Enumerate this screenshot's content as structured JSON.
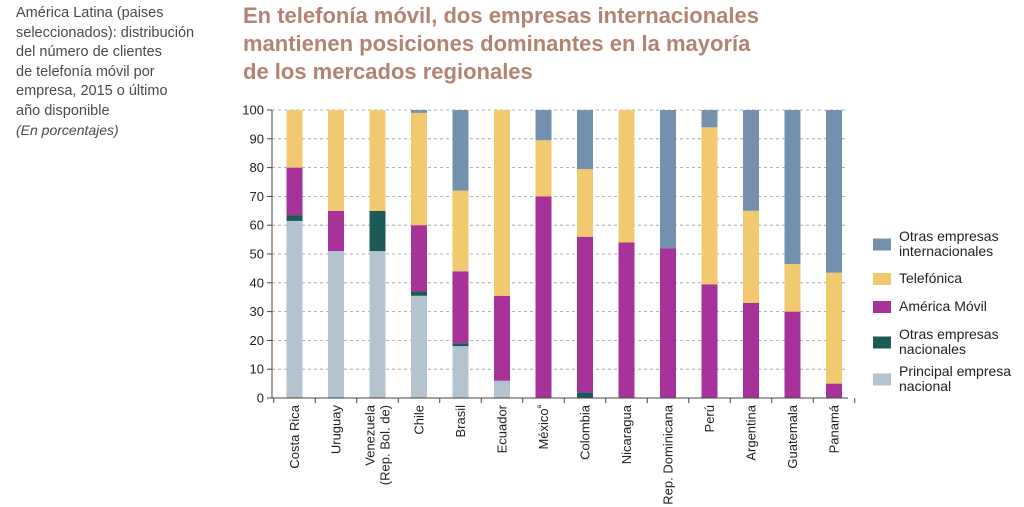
{
  "caption": {
    "line1": "América Latina (paises",
    "line2": "seleccionados): distribución",
    "line3": "del número de clientes",
    "line4": "de telefonía móvil por",
    "line5": "empresa, 2015 o último",
    "line6": "año disponible",
    "units": "(En porcentajes)"
  },
  "title": {
    "line1": "En telefonía móvil, dos empresas internacionales",
    "line2": "mantienen posiciones dominantes en la mayoría",
    "line3": "de los mercados regionales"
  },
  "colors": {
    "principal": "#b3c3d0",
    "otras_nac": "#1b5a57",
    "america_movil": "#a7339a",
    "telefonica": "#f1c96f",
    "otras_int": "#7390ad"
  },
  "chart_data": {
    "type": "bar",
    "stacked": true,
    "ylim": [
      0,
      100
    ],
    "yticks": [
      0,
      10,
      20,
      30,
      40,
      50,
      60,
      70,
      80,
      90,
      100
    ],
    "grid": "horizontal-dashed",
    "categories": [
      [
        "Costa Rica"
      ],
      [
        "Uruguay"
      ],
      [
        "Venezuela",
        "(Rep. Bol. de)"
      ],
      [
        "Chile"
      ],
      [
        "Brasil"
      ],
      [
        "Ecuador"
      ],
      [
        "México",
        "ª"
      ],
      [
        "Colombia"
      ],
      [
        "Nicaragua"
      ],
      [
        "Rep. Dominicana"
      ],
      [
        "Perú"
      ],
      [
        "Argentina"
      ],
      [
        "Guatemala"
      ],
      [
        "Panamá"
      ]
    ],
    "series": [
      {
        "key": "principal",
        "name": "Principal empresa nacional",
        "values": [
          61.5,
          51,
          51,
          35.5,
          18,
          6,
          0,
          0,
          0,
          0,
          0,
          0,
          0,
          0
        ]
      },
      {
        "key": "otras_nac",
        "name": "Otras empresas nacionales",
        "values": [
          2,
          0,
          14,
          1.5,
          1,
          0,
          0,
          2,
          0,
          0,
          0,
          0,
          0,
          0
        ]
      },
      {
        "key": "america_movil",
        "name": "América Móvil",
        "values": [
          16.5,
          14,
          0,
          23,
          25,
          29.5,
          70,
          54,
          54,
          52,
          39.5,
          33,
          30,
          5
        ]
      },
      {
        "key": "telefonica",
        "name": "Telefónica",
        "values": [
          20,
          35,
          35,
          39,
          28,
          64.5,
          19.5,
          23.5,
          46,
          0,
          54.5,
          32,
          16.5,
          38.5
        ]
      },
      {
        "key": "otras_int",
        "name": "Otras empresas internacionales",
        "values": [
          0,
          0,
          0,
          1,
          28,
          0,
          10.5,
          20.5,
          0,
          48,
          6,
          35,
          53.5,
          56.5
        ]
      }
    ],
    "legend": {
      "position": "right",
      "items": [
        {
          "key": "otras_int",
          "lines": [
            "Otras empresas",
            "internacionales"
          ]
        },
        {
          "key": "telefonica",
          "lines": [
            "Telefónica"
          ]
        },
        {
          "key": "america_movil",
          "lines": [
            "América Móvil"
          ]
        },
        {
          "key": "otras_nac",
          "lines": [
            "Otras empresas",
            "nacionales"
          ]
        },
        {
          "key": "principal",
          "lines": [
            "Principal empresa",
            "nacional"
          ]
        }
      ]
    }
  }
}
